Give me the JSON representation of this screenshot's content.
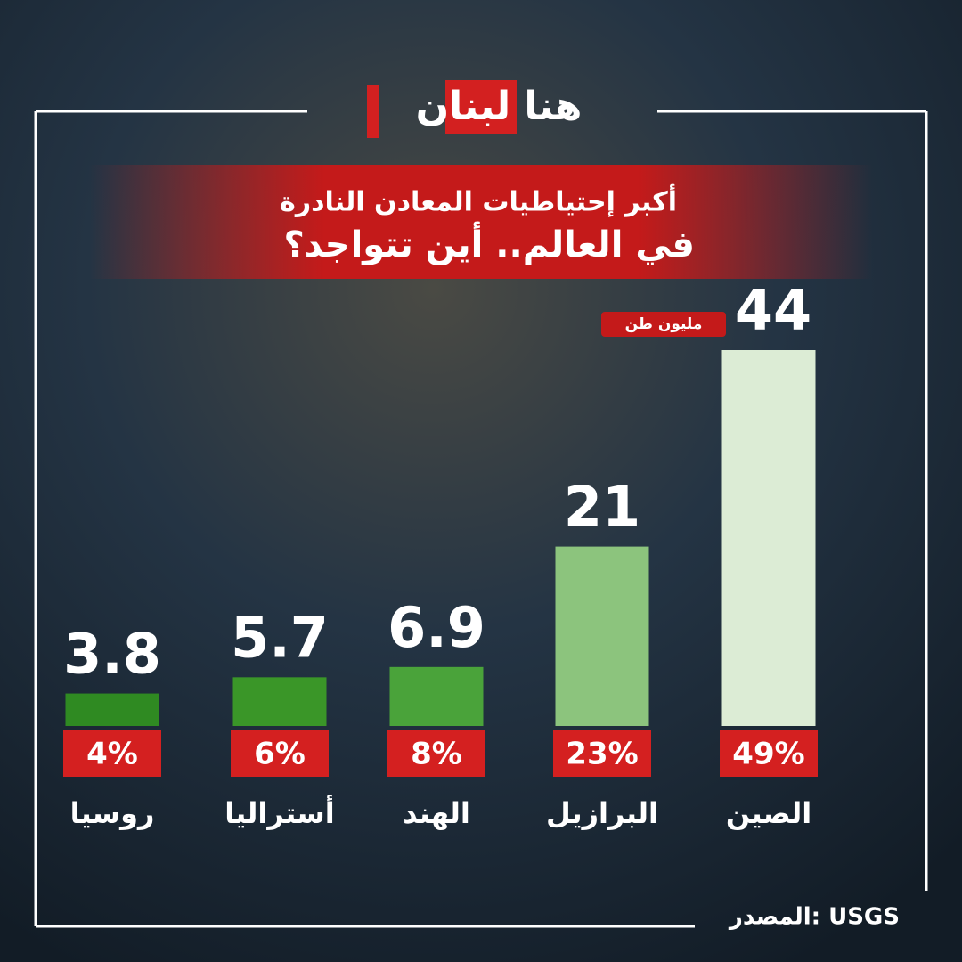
{
  "brand": "هنا لبنان",
  "chart_data": {
    "type": "bar",
    "title": "أكبر إحتياطيات المعادن النادرة",
    "subtitle": "في العالم.. أين تتواجد؟",
    "unit": "مليون طن",
    "categories": [
      "روسيا",
      "أستراليا",
      "الهند",
      "البرازيل",
      "الصين"
    ],
    "values": [
      3.8,
      5.7,
      6.9,
      21,
      44
    ],
    "colors": [
      "#2f8a22",
      "#3a9628",
      "#4aa33a",
      "#8cc47d",
      "#dcecd5"
    ],
    "shares": [
      {
        "value": 4,
        "label": "4%"
      },
      {
        "value": 6,
        "label": "6%"
      },
      {
        "value": 8,
        "label": "8%"
      },
      {
        "value": 23,
        "label": "23%"
      },
      {
        "value": 49,
        "label": "49%"
      }
    ],
    "ylim": [
      0,
      44
    ],
    "source": "المصدر: USGS"
  }
}
